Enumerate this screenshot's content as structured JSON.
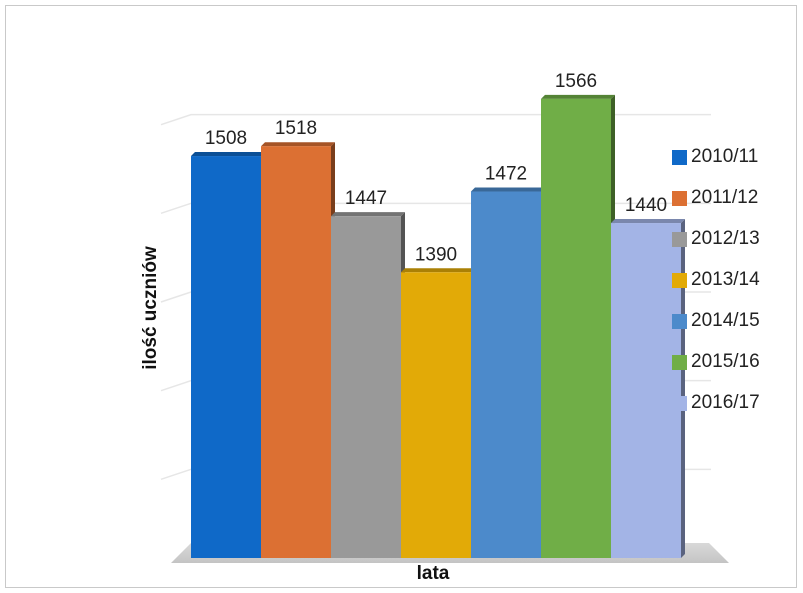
{
  "chart_data": {
    "type": "bar",
    "title": "",
    "xlabel": "lata",
    "ylabel": "ilość uczniów",
    "ylim": [
      1100,
      1640
    ],
    "grid": true,
    "legend_position": "right",
    "categories": [
      "2010/11",
      "2011/12",
      "2012/13",
      "2013/14",
      "2014/15",
      "2015/16",
      "2016/17"
    ],
    "values": [
      1508,
      1518,
      1447,
      1390,
      1472,
      1566,
      1440
    ],
    "data_labels": [
      "1508",
      "1518",
      "1447",
      "1390",
      "1472",
      "1566",
      "1440"
    ],
    "colors": [
      "#0f69c8",
      "#dc7033",
      "#999999",
      "#e2aa07",
      "#4c8acb",
      "#70ae47",
      "#a3b4e6"
    ]
  }
}
